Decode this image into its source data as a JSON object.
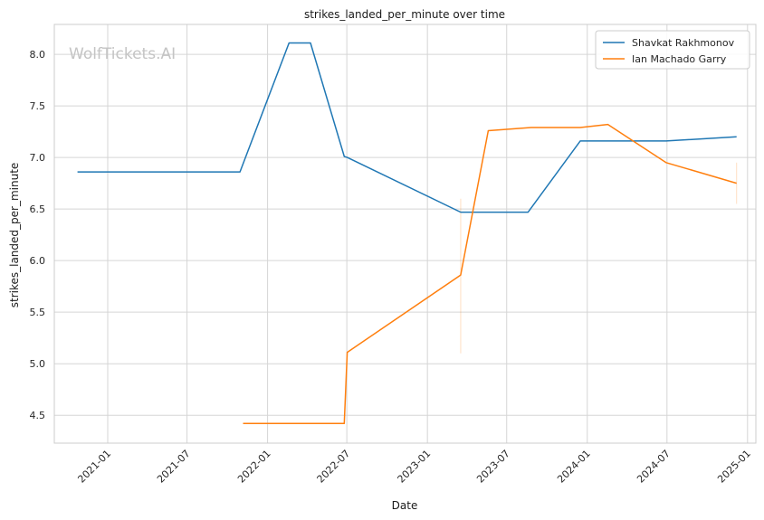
{
  "chart_data": {
    "type": "line",
    "title": "strikes_landed_per_minute over time",
    "xlabel": "Date",
    "ylabel": "strikes_landed_per_minute",
    "watermark": "WolfTickets.AI",
    "xlim": [
      "2020-09-01",
      "2025-01-20"
    ],
    "ylim": [
      4.23,
      8.29
    ],
    "yticks": [
      4.5,
      5.0,
      5.5,
      6.0,
      6.5,
      7.0,
      7.5,
      8.0
    ],
    "xticks": [
      "2021-01",
      "2021-07",
      "2022-01",
      "2022-07",
      "2023-01",
      "2023-07",
      "2024-01",
      "2024-07",
      "2025-01"
    ],
    "grid": true,
    "legend_position": "top-right",
    "colors": {
      "Shavkat Rakhmonov": "#1f77b4",
      "Ian Machado Garry": "#ff7f0e"
    },
    "series": [
      {
        "name": "Shavkat Rakhmonov",
        "color": "#1f77b4",
        "points": [
          [
            "2020-10-24",
            6.86
          ],
          [
            "2021-10-30",
            6.86
          ],
          [
            "2022-02-19",
            8.11
          ],
          [
            "2022-04-09",
            8.11
          ],
          [
            "2022-06-25",
            7.01
          ],
          [
            "2022-07-02",
            7.0
          ],
          [
            "2023-03-18",
            6.47
          ],
          [
            "2023-08-19",
            6.47
          ],
          [
            "2023-12-16",
            7.16
          ],
          [
            "2024-06-29",
            7.16
          ],
          [
            "2024-12-07",
            7.2
          ]
        ]
      },
      {
        "name": "Ian Machado Garry",
        "color": "#ff7f0e",
        "points": [
          [
            "2021-11-06",
            4.42
          ],
          [
            "2022-06-25",
            4.42
          ],
          [
            "2022-07-02",
            5.11
          ],
          [
            "2023-03-18",
            5.86
          ],
          [
            "2023-05-20",
            7.26
          ],
          [
            "2023-08-26",
            7.29
          ],
          [
            "2023-12-16",
            7.29
          ],
          [
            "2024-02-17",
            7.32
          ],
          [
            "2024-06-29",
            6.95
          ],
          [
            "2024-12-07",
            6.75
          ]
        ]
      }
    ]
  }
}
